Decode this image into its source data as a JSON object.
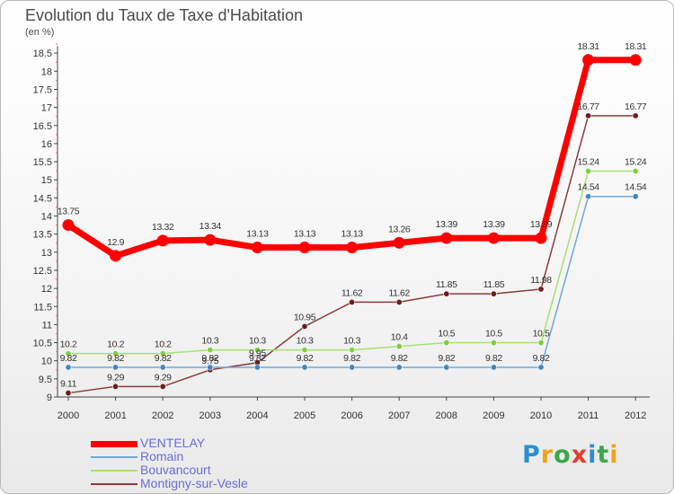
{
  "title": "Evolution du Taux de Taxe d'Habitation",
  "subtitle": "(en %)",
  "logo": {
    "letters": [
      {
        "ch": "P",
        "color": "#2a8fd6"
      },
      {
        "ch": "r",
        "color": "#f2a21c"
      },
      {
        "ch": "o",
        "color": "#3aa845"
      },
      {
        "ch": "x",
        "color": "#e63c2e"
      },
      {
        "ch": "i",
        "color": "#2a8fd6"
      },
      {
        "ch": "t",
        "color": "#3aa845"
      },
      {
        "ch": "i",
        "color": "#f2a21c"
      }
    ]
  },
  "chart_data": {
    "type": "line",
    "title": "Evolution du Taux de Taxe d'Habitation",
    "ylabel": "(en %)",
    "xlabel": "",
    "categories": [
      "2000",
      "2001",
      "2002",
      "2003",
      "2004",
      "2005",
      "2006",
      "2007",
      "2008",
      "2009",
      "2010",
      "2011",
      "2012"
    ],
    "ylim": [
      9,
      18.5
    ],
    "yticks": [
      "9",
      "9.5",
      "10",
      "10.5",
      "11",
      "11.5",
      "12",
      "12.5",
      "13",
      "13.5",
      "14",
      "14.5",
      "15",
      "15.5",
      "16",
      "16.5",
      "17",
      "17.5",
      "18",
      "18.5"
    ],
    "grid": false,
    "legend_position": "bottom-left",
    "series": [
      {
        "name": "VENTELAY",
        "color": "#ff0000",
        "style": "thick",
        "values": [
          13.75,
          12.9,
          13.32,
          13.34,
          13.13,
          13.13,
          13.13,
          13.26,
          13.39,
          13.39,
          13.39,
          18.31,
          18.31
        ],
        "labels": [
          "13.75",
          "12.9",
          "13.32",
          "13.34",
          "13.13",
          "13.13",
          "13.13",
          "13.26",
          "13.39",
          "13.39",
          "13.39",
          "18.31",
          "18.31"
        ]
      },
      {
        "name": "Romain",
        "color": "#6fa8d6",
        "marker": "#3f88c2",
        "style": "thin",
        "values": [
          9.82,
          9.82,
          9.82,
          9.82,
          9.82,
          9.82,
          9.82,
          9.82,
          9.82,
          9.82,
          9.82,
          14.54,
          14.54
        ],
        "labels": [
          "9.82",
          "9.82",
          "9.82",
          "9.82",
          "9.82",
          "9.82",
          "9.82",
          "9.82",
          "9.82",
          "9.82",
          "9.82",
          "14.54",
          "14.54"
        ]
      },
      {
        "name": "Bouvancourt",
        "color": "#a8e070",
        "marker": "#7fcf3f",
        "style": "thin",
        "values": [
          10.2,
          10.2,
          10.2,
          10.3,
          10.3,
          10.3,
          10.3,
          10.4,
          10.5,
          10.5,
          10.5,
          15.24,
          15.24
        ],
        "labels": [
          "10.2",
          "10.2",
          "10.2",
          "10.3",
          "10.3",
          "10.3",
          "10.3",
          "10.4",
          "10.5",
          "10.5",
          "10.5",
          "15.24",
          "15.24"
        ]
      },
      {
        "name": "Montigny-sur-Vesle",
        "color": "#8b3a3a",
        "marker": "#6e1c1c",
        "style": "thin",
        "values": [
          9.11,
          9.29,
          9.29,
          9.75,
          9.95,
          10.95,
          11.62,
          11.62,
          11.85,
          11.85,
          11.98,
          16.77,
          16.77
        ],
        "labels": [
          "9.11",
          "9.29",
          "9.29",
          "9.75",
          "9.95",
          "10.95",
          "11.62",
          "11.62",
          "11.85",
          "11.85",
          "11.98",
          "16.77",
          "16.77"
        ]
      }
    ]
  }
}
